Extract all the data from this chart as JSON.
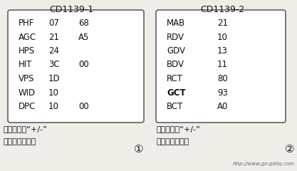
{
  "title1": "CD1139-1",
  "title2": "CD1139-2",
  "left_rows": [
    [
      "PHF",
      "07",
      "68"
    ],
    [
      "AGC",
      "21",
      "A5"
    ],
    [
      "HPS",
      "24",
      ""
    ],
    [
      "HIT",
      "3C",
      "00"
    ],
    [
      "VPS",
      "1D",
      ""
    ],
    [
      "WID",
      "10",
      ""
    ],
    [
      "DPC",
      "10",
      "00"
    ]
  ],
  "right_rows": [
    [
      "MAB",
      "21"
    ],
    [
      "RDV",
      "10"
    ],
    [
      "GDV",
      "13"
    ],
    [
      "BDV",
      "11"
    ],
    [
      "RCT",
      "80"
    ],
    [
      "GCT",
      "93"
    ],
    [
      "BCT",
      "A0"
    ]
  ],
  "note1_line1": "注：按音量“+/-”",
  "note1_line2": "键，调整参数。",
  "note2_line1": "注：按音量“+/-”",
  "note2_line2": "键，调整参数。",
  "circle1": "①",
  "circle2": "②",
  "watermark": "http://www.go-gddq.com",
  "bg_color": "#f0ede8",
  "box_facecolor": "#ffffff",
  "box_edgecolor": "#444444",
  "text_color": "#111111",
  "note_color": "#111111",
  "watermark_color": "#666666"
}
